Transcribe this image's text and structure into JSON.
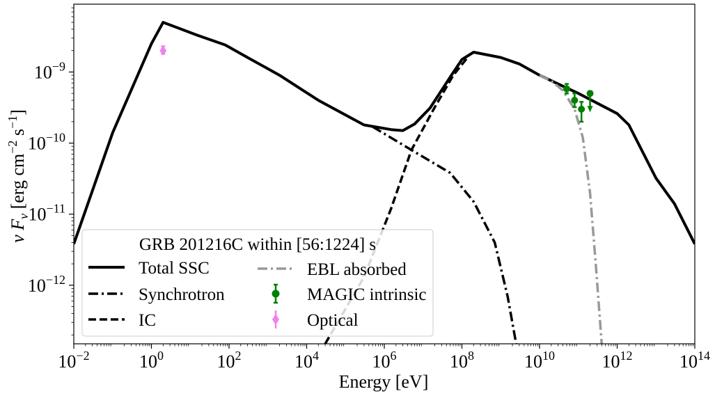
{
  "chart_data": {
    "type": "line",
    "xlabel": "Energy [eV]",
    "ylabel_math": "ν F",
    "ylabel_sub": "ν",
    "ylabel_rest": " [erg cm",
    "ylabel_exp1": "−2",
    "ylabel_mid": " s",
    "ylabel_exp2": "−1",
    "ylabel_end": "]",
    "x_scale": "log",
    "y_scale": "log",
    "xlim": [
      0.01,
      100000000000000.0
    ],
    "ylim": [
      1.5e-13,
      9e-09
    ],
    "grid": false,
    "legend_placement": "bottom-left",
    "legend_title": "GRB 201216C within [56:1224] s",
    "x_ticks": [
      {
        "base": "10",
        "exp": "−2",
        "value": 0.01
      },
      {
        "base": "10",
        "exp": "0",
        "value": 1
      },
      {
        "base": "10",
        "exp": "2",
        "value": 100
      },
      {
        "base": "10",
        "exp": "4",
        "value": 10000
      },
      {
        "base": "10",
        "exp": "6",
        "value": 1000000.0
      },
      {
        "base": "10",
        "exp": "8",
        "value": 100000000.0
      },
      {
        "base": "10",
        "exp": "10",
        "value": 10000000000.0
      },
      {
        "base": "10",
        "exp": "12",
        "value": 1000000000000.0
      },
      {
        "base": "10",
        "exp": "14",
        "value": 100000000000000.0
      }
    ],
    "y_ticks": [
      {
        "base": "10",
        "exp": "−9",
        "value": 1e-09
      },
      {
        "base": "10",
        "exp": "−10",
        "value": 1e-10
      },
      {
        "base": "10",
        "exp": "−11",
        "value": 1e-11
      },
      {
        "base": "10",
        "exp": "−12",
        "value": 1e-12
      }
    ],
    "series": [
      {
        "name": "Total SSC",
        "style": "solid",
        "color": "#000000",
        "x": [
          0.01,
          0.1,
          1,
          2,
          15,
          80,
          300,
          2000,
          20000,
          300000,
          1500000,
          3000000,
          6000000,
          15000000,
          50000000,
          100000000,
          200000000,
          1000000000,
          3000000000,
          10000000000,
          100000000000,
          1000000000000,
          2000000000000,
          10000000000000,
          30000000000000,
          100000000000000
        ],
        "y": [
          3.8e-12,
          1.4e-10,
          2.5e-09,
          5e-09,
          3.3e-09,
          2.4e-09,
          1.6e-09,
          9e-10,
          4e-10,
          1.8e-10,
          1.55e-10,
          1.5e-10,
          1.85e-10,
          3.1e-10,
          8.5e-10,
          1.5e-09,
          1.9e-09,
          1.6e-09,
          1.3e-09,
          9e-10,
          5e-10,
          2.6e-10,
          1.8e-10,
          3.2e-11,
          1.4e-11,
          3.8e-12
        ]
      },
      {
        "name": "Synchrotron",
        "style": "dashdot",
        "color": "#000000",
        "x": [
          500000,
          5000000,
          50000000,
          200000000,
          700000000,
          1500000000,
          2500000000,
          3500000000
        ],
        "y": [
          1.7e-10,
          8e-11,
          3.8e-11,
          1.5e-11,
          4e-12,
          7e-13,
          1.5e-13,
          3e-14
        ]
      },
      {
        "name": "IC",
        "style": "dashed",
        "color": "#000000",
        "x": [
          30000,
          300000,
          1500000,
          5000000,
          20000000,
          60000000,
          140000000
        ],
        "y": [
          1.5e-13,
          1.3e-12,
          1.2e-11,
          8e-11,
          3.2e-10,
          9e-10,
          1.6e-09
        ]
      },
      {
        "name": "EBL absorbed",
        "style": "dashdot",
        "color": "#999999",
        "x": [
          10000000000,
          20000000000,
          40000000000,
          80000000000,
          130000000000,
          200000000000,
          280000000000,
          400000000000,
          450000000000
        ],
        "y": [
          9e-10,
          7.5e-10,
          5.5e-10,
          3e-10,
          1.2e-10,
          2e-11,
          2e-12,
          1.5e-13,
          5e-14
        ]
      }
    ],
    "points": [
      {
        "name": "MAGIC intrinsic",
        "color": "#008000",
        "x": [
          50000000000,
          80000000000,
          120000000000,
          200000000000
        ],
        "y": [
          5.8e-10,
          4e-10,
          3e-10,
          5e-10
        ],
        "err_lo": [
          5e-10,
          3.2e-10,
          2e-10,
          null
        ],
        "err_hi": [
          6.8e-10,
          5e-10,
          3.8e-10,
          null
        ],
        "upper_limit": [
          false,
          false,
          false,
          true
        ]
      },
      {
        "name": "Optical",
        "color": "#EE82EE",
        "x": [
          2
        ],
        "y": [
          2e-09
        ],
        "err_lo": [
          1.8e-09
        ],
        "err_hi": [
          2.3e-09
        ],
        "upper_limit": [
          false
        ]
      }
    ]
  }
}
